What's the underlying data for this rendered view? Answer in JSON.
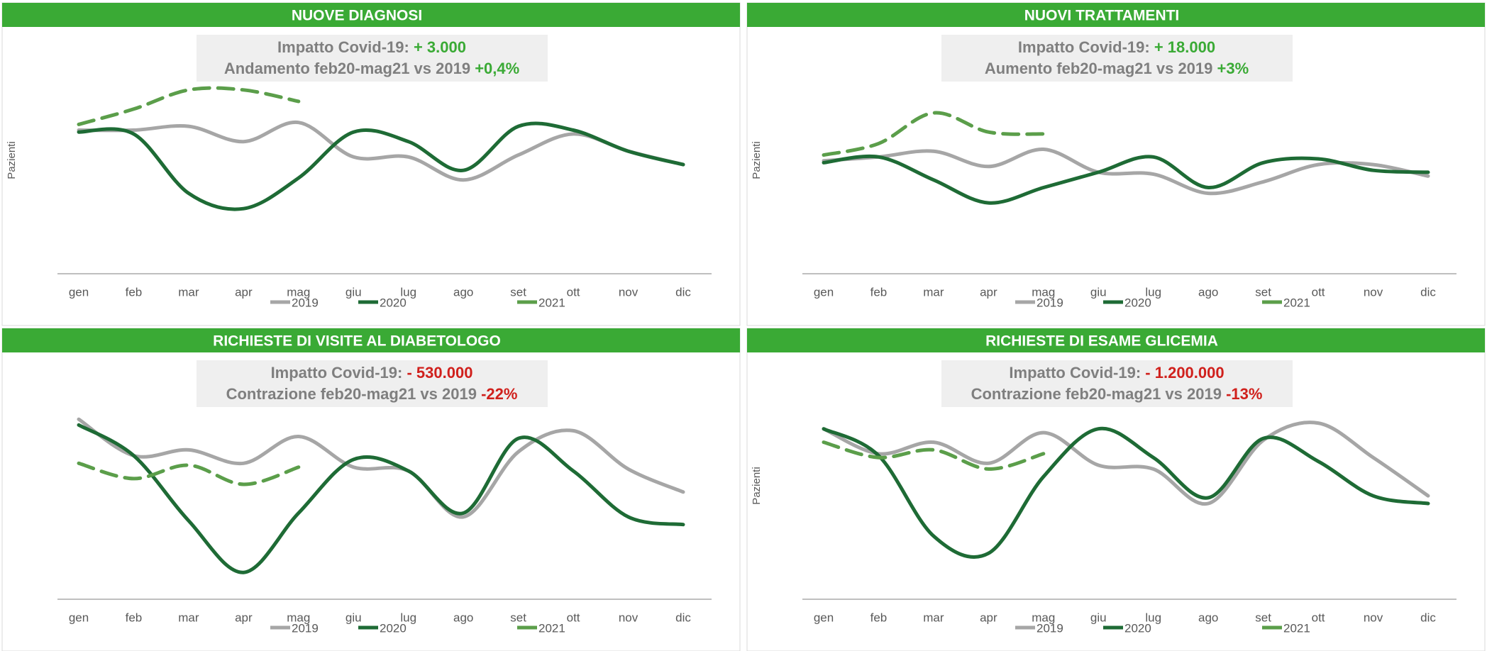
{
  "chart_data": [
    {
      "type": "line",
      "title": "NUOVE DIAGNOSI",
      "annotation": [
        [
          {
            "text": "Impatto Covid-19: ",
            "color": "#7f7f7f"
          },
          {
            "text": "+ 3.000",
            "color": "#3aaa35"
          }
        ],
        [
          {
            "text": "Andamento feb20-mag21 vs 2019 ",
            "color": "#7f7f7f"
          },
          {
            "text": "+0,4%",
            "color": "#3aaa35"
          }
        ]
      ],
      "ylabel": "Pazienti",
      "ylim": [
        0,
        100
      ],
      "categories": [
        "gen",
        "feb",
        "mar",
        "apr",
        "mag",
        "giu",
        "lug",
        "ago",
        "set",
        "ott",
        "nov",
        "dic"
      ],
      "series": [
        {
          "name": "2019",
          "color": "#a6a6a6",
          "line_style": "solid",
          "values": [
            75,
            75,
            77,
            69,
            79,
            61,
            61,
            49,
            62,
            73,
            64,
            57
          ]
        },
        {
          "name": "2020",
          "color": "#1e6b35",
          "line_style": "solid",
          "values": [
            74,
            73,
            42,
            34,
            50,
            74,
            69,
            54,
            77,
            75,
            64,
            57
          ]
        },
        {
          "name": "2021",
          "color": "#5b9e4a",
          "line_style": "dashed",
          "values": [
            78,
            86,
            96,
            96,
            90,
            null,
            null,
            null,
            null,
            null,
            null,
            null
          ]
        }
      ]
    },
    {
      "type": "line",
      "title": "NUOVI TRATTAMENTI",
      "annotation": [
        [
          {
            "text": "Impatto Covid-19: ",
            "color": "#7f7f7f"
          },
          {
            "text": "+ 18.000",
            "color": "#3aaa35"
          }
        ],
        [
          {
            "text": "Aumento feb20-mag21 vs 2019 ",
            "color": "#7f7f7f"
          },
          {
            "text": "+3%",
            "color": "#3aaa35"
          }
        ]
      ],
      "ylabel": "Pazienti",
      "ylim": [
        0,
        100
      ],
      "categories": [
        "gen",
        "feb",
        "mar",
        "apr",
        "mag",
        "giu",
        "lug",
        "ago",
        "set",
        "ott",
        "nov",
        "dic"
      ],
      "series": [
        {
          "name": "2019",
          "color": "#a6a6a6",
          "line_style": "solid",
          "values": [
            59,
            61,
            64,
            56,
            65,
            53,
            52,
            42,
            48,
            57,
            57,
            51
          ]
        },
        {
          "name": "2020",
          "color": "#1e6b35",
          "line_style": "solid",
          "values": [
            58,
            61,
            49,
            37,
            45,
            53,
            61,
            45,
            58,
            60,
            54,
            53
          ]
        },
        {
          "name": "2021",
          "color": "#5b9e4a",
          "line_style": "dashed",
          "values": [
            62,
            68,
            84,
            74,
            73,
            null,
            null,
            null,
            null,
            null,
            null,
            null
          ]
        }
      ]
    },
    {
      "type": "line",
      "title": "RICHIESTE DI VISITE AL DIABETOLOGO",
      "annotation": [
        [
          {
            "text": "Impatto Covid-19: ",
            "color": "#7f7f7f"
          },
          {
            "text": "- 530.000",
            "color": "#d0201c"
          }
        ],
        [
          {
            "text": "Contrazione feb20-mag21 vs 2019 ",
            "color": "#7f7f7f"
          },
          {
            "text": "-22%",
            "color": "#d0201c"
          }
        ]
      ],
      "ylim": [
        0,
        100
      ],
      "categories": [
        "gen",
        "feb",
        "mar",
        "apr",
        "mag",
        "giu",
        "lug",
        "ago",
        "set",
        "ott",
        "nov",
        "dic"
      ],
      "series": [
        {
          "name": "2019",
          "color": "#a6a6a6",
          "line_style": "solid",
          "values": [
            94,
            75,
            78,
            71,
            85,
            69,
            67,
            43,
            77,
            88,
            68,
            56
          ]
        },
        {
          "name": "2020",
          "color": "#1e6b35",
          "line_style": "solid",
          "values": [
            91,
            75,
            41,
            14,
            45,
            73,
            67,
            45,
            84,
            67,
            43,
            39
          ]
        },
        {
          "name": "2021",
          "color": "#5b9e4a",
          "line_style": "dashed",
          "values": [
            71,
            63,
            70,
            60,
            69,
            null,
            null,
            null,
            null,
            null,
            null,
            null
          ]
        }
      ]
    },
    {
      "type": "line",
      "title": "RICHIESTE DI ESAME GLICEMIA",
      "annotation": [
        [
          {
            "text": "Impatto Covid-19: ",
            "color": "#7f7f7f"
          },
          {
            "text": "- 1.200.000",
            "color": "#d0201c"
          }
        ],
        [
          {
            "text": "Contrazione feb20-mag21 vs 2019 ",
            "color": "#7f7f7f"
          },
          {
            "text": "-13%",
            "color": "#d0201c"
          }
        ]
      ],
      "ylabel": "Pazienti",
      "ylim": [
        0,
        100
      ],
      "categories": [
        "gen",
        "feb",
        "mar",
        "apr",
        "mag",
        "giu",
        "lug",
        "ago",
        "set",
        "ott",
        "nov",
        "dic"
      ],
      "series": [
        {
          "name": "2019",
          "color": "#a6a6a6",
          "line_style": "solid",
          "values": [
            89,
            76,
            82,
            71,
            87,
            70,
            68,
            50,
            83,
            92,
            74,
            54
          ]
        },
        {
          "name": "2020",
          "color": "#1e6b35",
          "line_style": "solid",
          "values": [
            89,
            75,
            33,
            24,
            64,
            89,
            74,
            53,
            84,
            72,
            54,
            50
          ]
        },
        {
          "name": "2021",
          "color": "#5b9e4a",
          "line_style": "dashed",
          "values": [
            82,
            74,
            78,
            68,
            76,
            null,
            null,
            null,
            null,
            null,
            null,
            null
          ]
        }
      ]
    }
  ]
}
